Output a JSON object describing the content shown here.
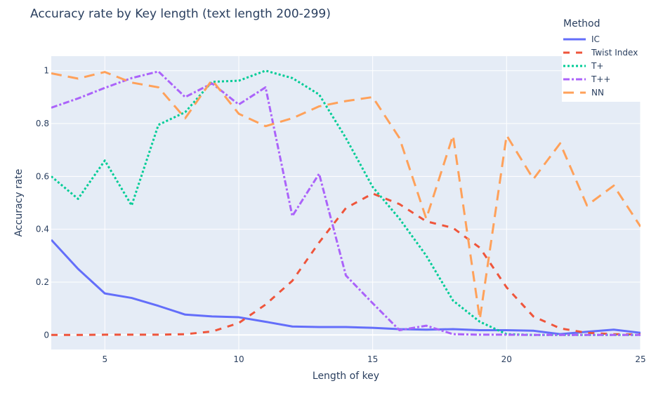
{
  "chart_data": {
    "type": "line",
    "title": "Accuracy rate by Key length (text length 200-299)",
    "xlabel": "Length of key",
    "ylabel": "Accuracy rate",
    "xlim": [
      3,
      25
    ],
    "ylim": [
      -0.055,
      1.055
    ],
    "xticks": [
      5,
      10,
      15,
      20,
      25
    ],
    "yticks": [
      0,
      0.2,
      0.4,
      0.6,
      0.8,
      1
    ],
    "ytick_labels": [
      "0",
      "0.2",
      "0.4",
      "0.6",
      "0.8",
      "1"
    ],
    "grid": true,
    "legend_title": "Method",
    "legend_position": "top-right",
    "x": [
      3,
      4,
      5,
      6,
      7,
      8,
      9,
      10,
      11,
      12,
      13,
      14,
      15,
      16,
      17,
      18,
      19,
      20,
      21,
      22,
      23,
      24,
      25
    ],
    "series": [
      {
        "name": "IC",
        "color": "#636efa",
        "dash": "solid",
        "values": [
          0.36,
          0.25,
          0.157,
          0.14,
          0.11,
          0.077,
          0.07,
          0.067,
          0.05,
          0.032,
          0.03,
          0.03,
          0.027,
          0.022,
          0.02,
          0.022,
          0.018,
          0.018,
          0.016,
          0.003,
          0.012,
          0.02,
          0.008
        ]
      },
      {
        "name": "Twist Index",
        "color": "#ef553b",
        "dash": "dash",
        "values": [
          0,
          0,
          0.001,
          0.001,
          0.001,
          0.003,
          0.013,
          0.045,
          0.115,
          0.205,
          0.35,
          0.48,
          0.535,
          0.495,
          0.43,
          0.405,
          0.33,
          0.18,
          0.07,
          0.025,
          0.008,
          0.003,
          0.002
        ]
      },
      {
        "name": "T+",
        "color": "#00cc96",
        "dash": "dot",
        "values": [
          0.6,
          0.515,
          0.66,
          0.49,
          0.795,
          0.843,
          0.958,
          0.962,
          1.0,
          0.972,
          0.91,
          0.745,
          0.56,
          0.44,
          0.3,
          0.13,
          0.05,
          0.003,
          0.0,
          0.0,
          0.0,
          0.0,
          0.0
        ]
      },
      {
        "name": "T++",
        "color": "#ab63fa",
        "dash": "dashdot",
        "values": [
          0.86,
          0.895,
          0.935,
          0.972,
          0.997,
          0.9,
          0.952,
          0.872,
          0.937,
          0.45,
          0.61,
          0.225,
          0.12,
          0.018,
          0.035,
          0.003,
          0.001,
          0.001,
          0.0,
          0.0,
          0.0,
          0.0,
          0.0
        ]
      },
      {
        "name": "NN",
        "color": "#ffa15a",
        "dash": "longdash",
        "values": [
          0.99,
          0.97,
          0.995,
          0.955,
          0.937,
          0.82,
          0.965,
          0.837,
          0.79,
          0.82,
          0.865,
          0.885,
          0.9,
          0.745,
          0.44,
          0.755,
          0.06,
          0.755,
          0.59,
          0.725,
          0.49,
          0.565,
          0.41
        ]
      }
    ]
  }
}
